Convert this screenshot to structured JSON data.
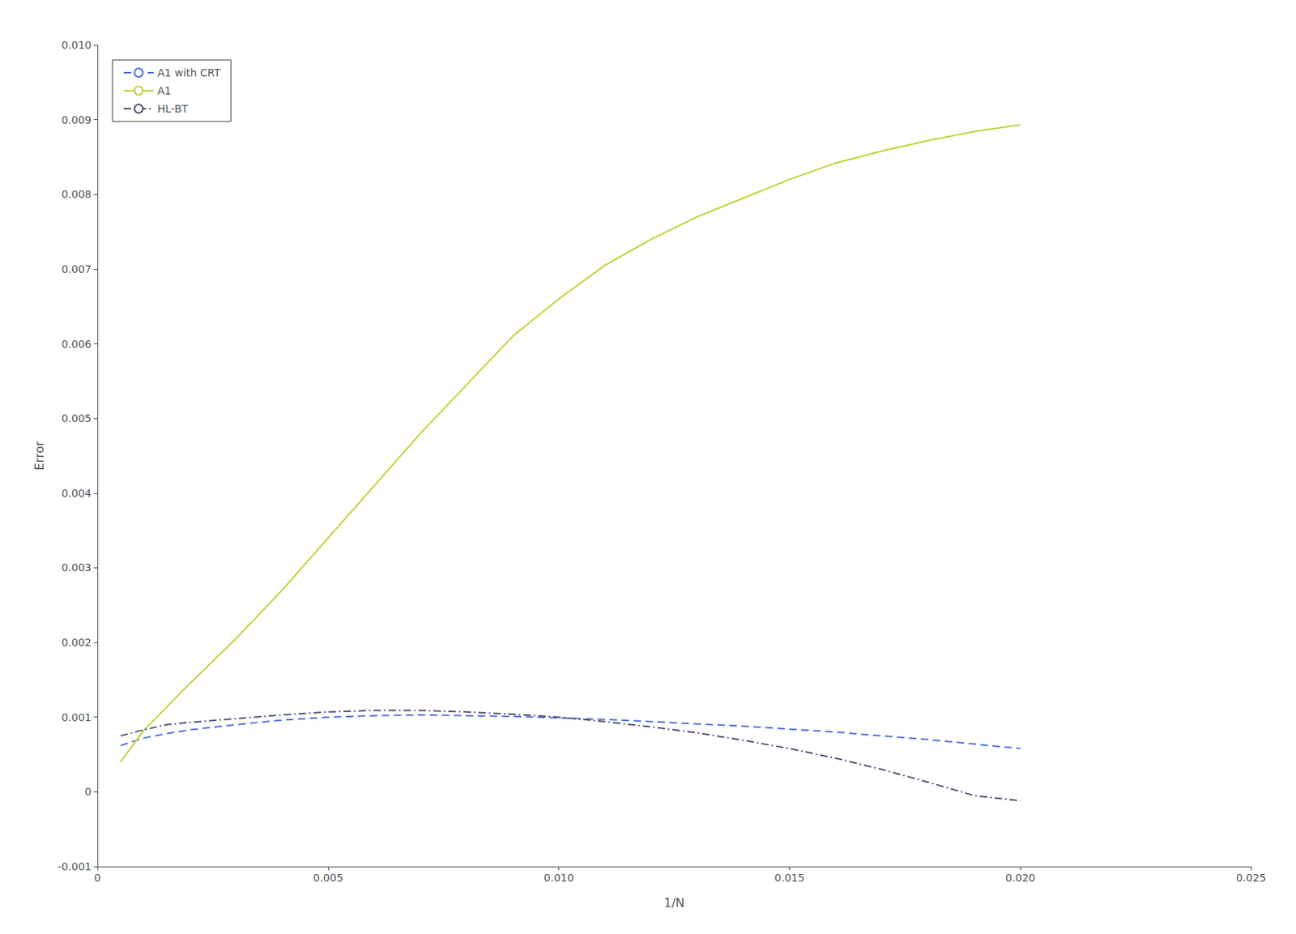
{
  "chart_data": {
    "type": "line",
    "xlabel": "1/N",
    "ylabel": "Error",
    "xlim": [
      0,
      0.025
    ],
    "ylim": [
      -0.001,
      0.01
    ],
    "xticks": [
      0,
      0.005,
      {
        "value": 0.01,
        "label": "0.010"
      },
      0.015,
      {
        "value": 0.02,
        "label": "0.020"
      },
      0.025
    ],
    "yticks": [
      -0.001,
      0,
      0.001,
      0.002,
      0.003,
      0.004,
      0.005,
      0.006,
      0.007,
      0.008,
      0.009,
      {
        "value": 0.01,
        "label": "0.010"
      }
    ],
    "grid": false,
    "legend": "upper left",
    "series": [
      {
        "name": "A1 with CRT",
        "line_style": "dashed",
        "x": [
          0.0005,
          0.001,
          0.0015,
          0.002,
          0.003,
          0.004,
          0.005,
          0.006,
          0.007,
          0.008,
          0.009,
          0.01,
          0.011,
          0.012,
          0.013,
          0.014,
          0.015,
          0.016,
          0.017,
          0.018,
          0.019,
          0.02
        ],
        "values": [
          0.00062,
          0.00072,
          0.00078,
          0.00083,
          0.0009,
          0.00096,
          0.001,
          0.00102,
          0.00103,
          0.00102,
          0.00101,
          0.00099,
          0.00097,
          0.00094,
          0.00091,
          0.00088,
          0.00084,
          0.0008,
          0.00075,
          0.0007,
          0.00064,
          0.00058
        ]
      },
      {
        "name": "A1",
        "line_style": "solid",
        "x": [
          0.0005,
          0.001,
          0.002,
          0.003,
          0.004,
          0.005,
          0.006,
          0.007,
          0.008,
          0.009,
          0.01,
          0.011,
          0.012,
          0.013,
          0.014,
          0.015,
          0.016,
          0.017,
          0.018,
          0.019,
          0.02
        ],
        "values": [
          0.0004,
          0.00082,
          0.00145,
          0.00205,
          0.0027,
          0.0034,
          0.0041,
          0.0048,
          0.00545,
          0.0061,
          0.0066,
          0.00705,
          0.0074,
          0.0077,
          0.00795,
          0.0082,
          0.00842,
          0.00858,
          0.00872,
          0.00884,
          0.00893
        ]
      },
      {
        "name": "HL-BT",
        "line_style": "dashdot",
        "x": [
          0.0005,
          0.001,
          0.0015,
          0.002,
          0.003,
          0.004,
          0.005,
          0.006,
          0.007,
          0.008,
          0.009,
          0.01,
          0.011,
          0.012,
          0.013,
          0.014,
          0.015,
          0.016,
          0.017,
          0.018,
          0.019,
          0.02
        ],
        "values": [
          0.00075,
          0.00083,
          0.0009,
          0.00093,
          0.00098,
          0.00103,
          0.00107,
          0.00109,
          0.00109,
          0.00107,
          0.00104,
          0.001,
          0.00094,
          0.00087,
          0.00079,
          0.00069,
          0.00058,
          0.00045,
          0.0003,
          0.00013,
          -5e-05,
          -0.00012
        ]
      }
    ]
  }
}
